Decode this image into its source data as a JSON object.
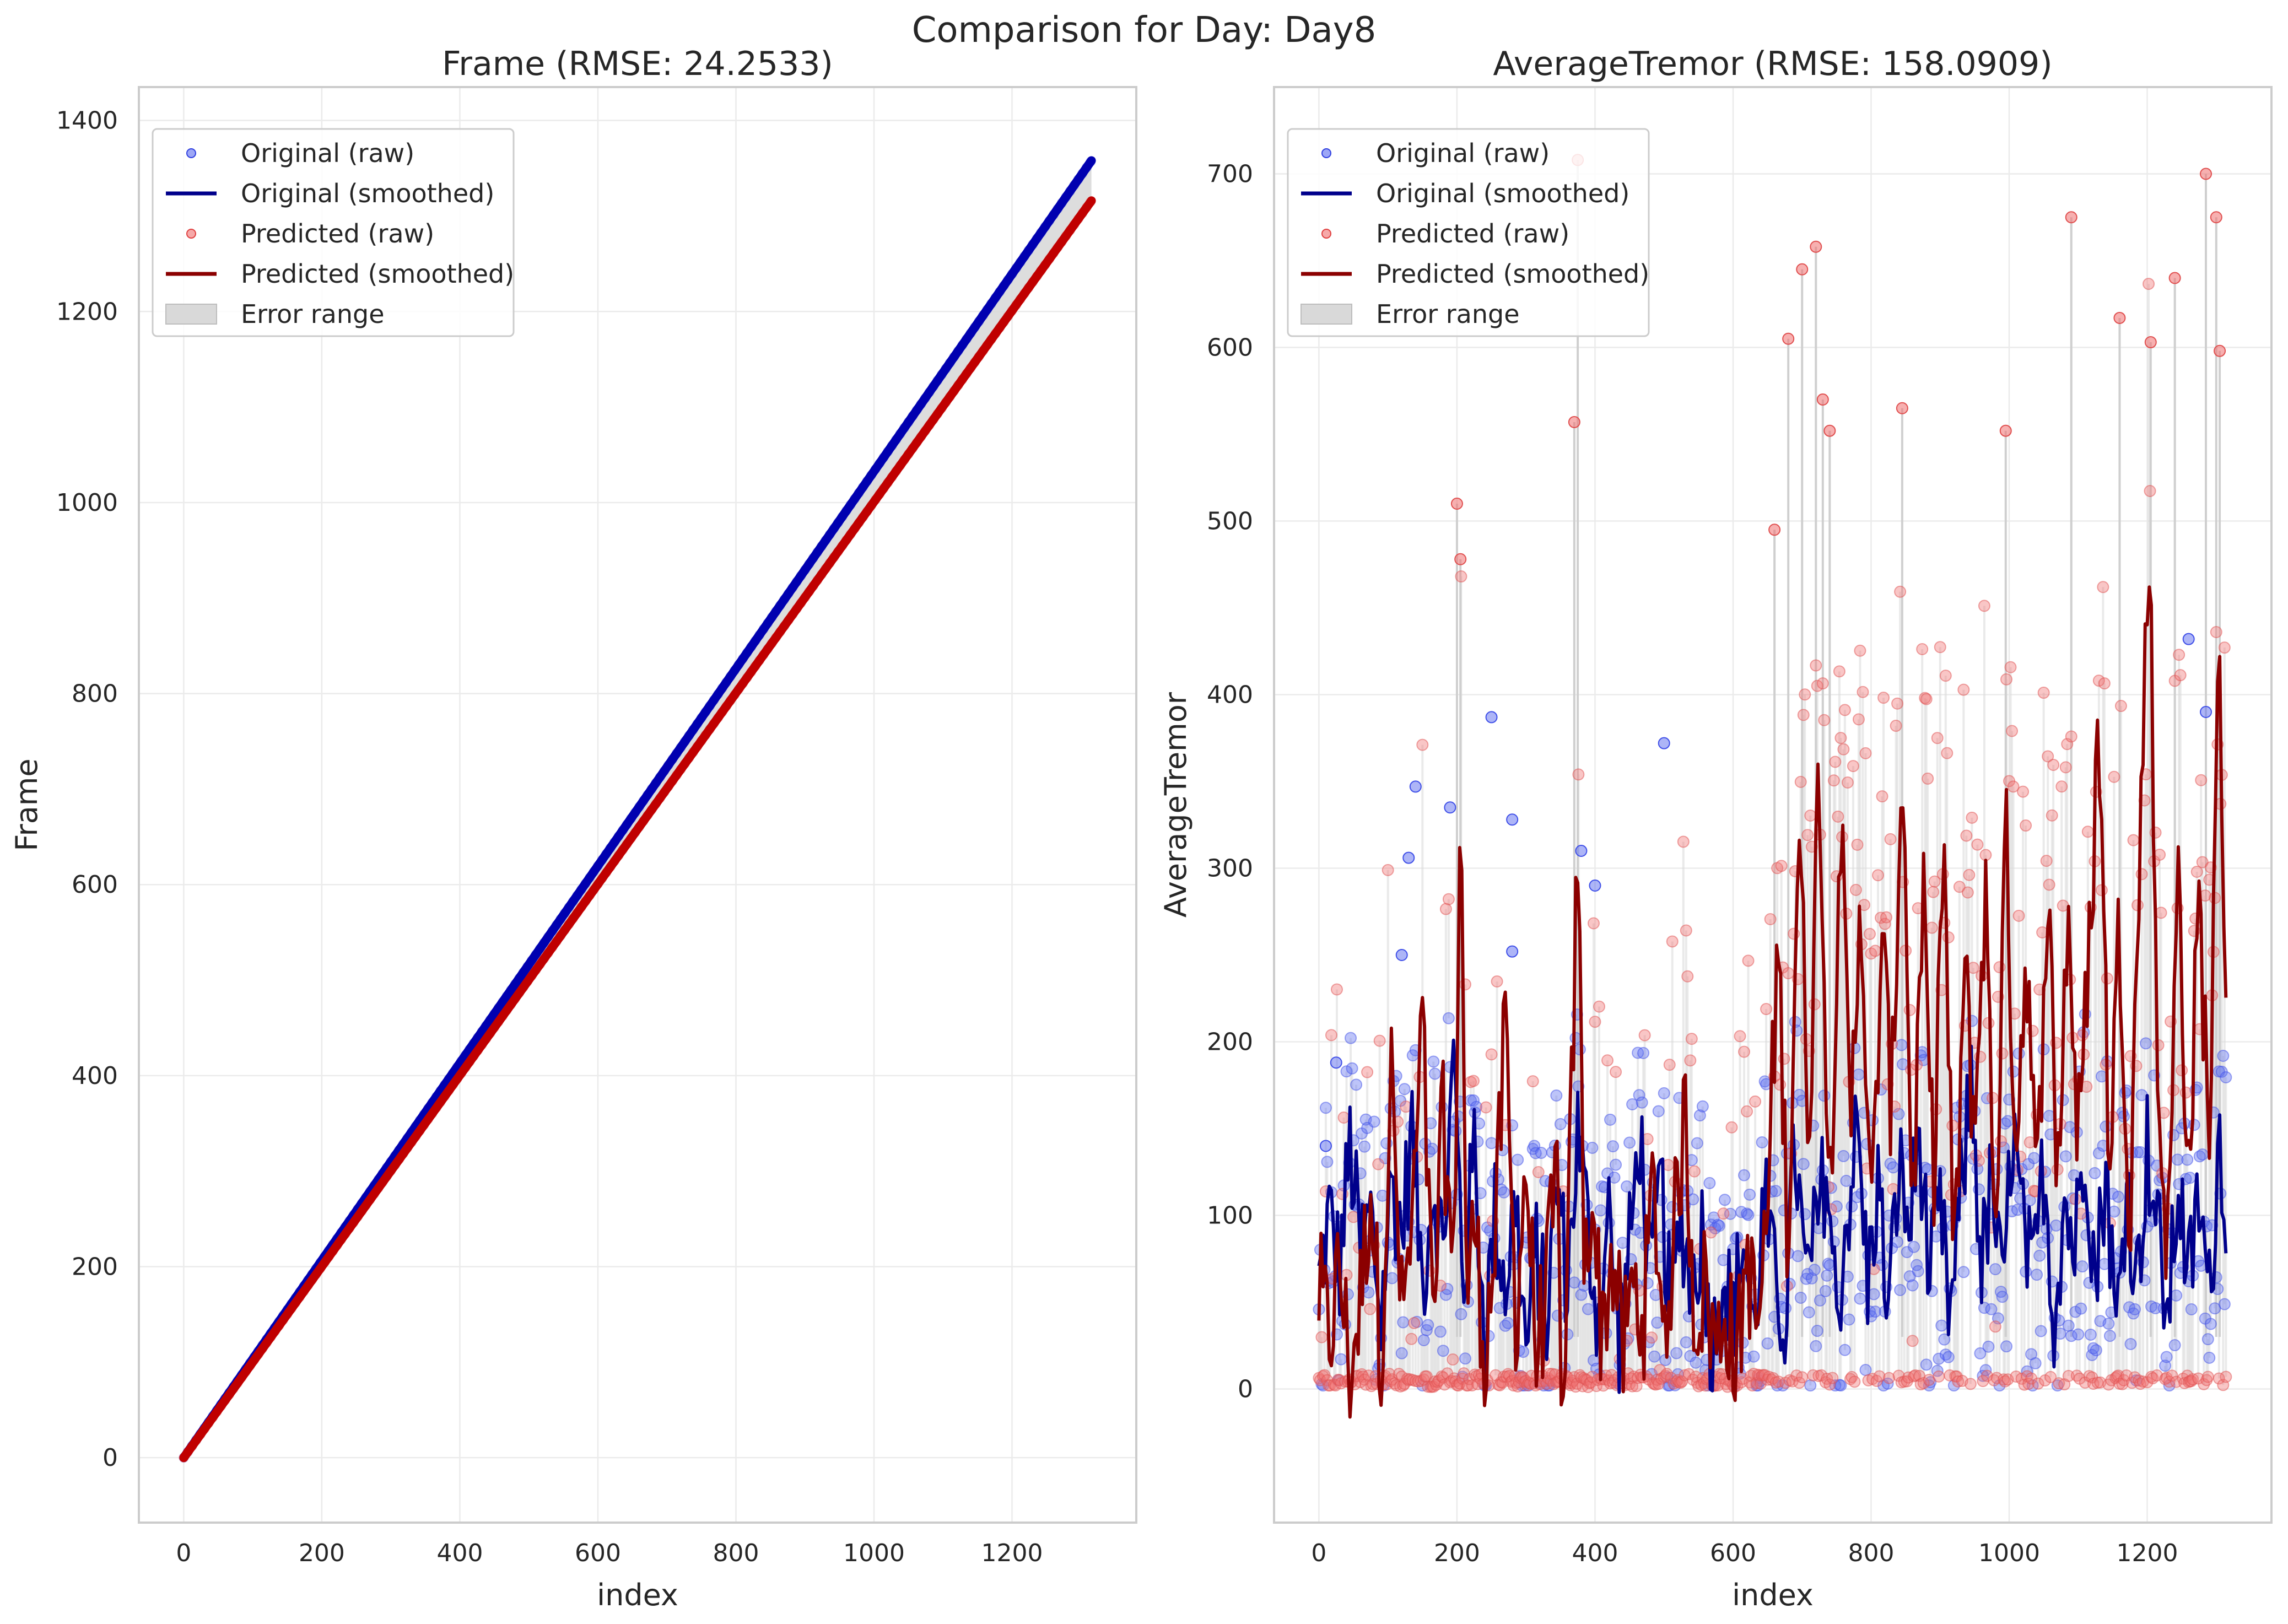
{
  "figure": {
    "title": "Comparison for Day: Day8"
  },
  "legend_labels": [
    "Original (raw)",
    "Original (smoothed)",
    "Predicted (raw)",
    "Predicted (smoothed)",
    "Error range"
  ],
  "colors": {
    "original_raw": "#5b6cf0",
    "original_smoothed": "#00008b",
    "predicted_raw": "#f07070",
    "predicted_smoothed": "#8b0000",
    "error_range": "#d9d9d9",
    "grid": "#ebebeb",
    "spine": "#cccccc"
  },
  "chart_data": [
    {
      "type": "line",
      "title": "Frame (RMSE: 24.2533)",
      "xlabel": "index",
      "ylabel": "Frame",
      "xlim": [
        -65,
        1380
      ],
      "ylim": [
        -68,
        1435
      ],
      "xticks": [
        0,
        200,
        400,
        600,
        800,
        1000,
        1200
      ],
      "yticks": [
        0,
        200,
        400,
        600,
        800,
        1000,
        1200,
        1400
      ],
      "n_points": 1316,
      "series": [
        {
          "name": "Original (raw)",
          "start": [
            0,
            0
          ],
          "end": [
            1315,
            1358
          ]
        },
        {
          "name": "Original (smoothed)",
          "start": [
            0,
            0
          ],
          "end": [
            1315,
            1358
          ]
        },
        {
          "name": "Predicted (raw)",
          "start": [
            0,
            0
          ],
          "end": [
            1315,
            1316
          ]
        },
        {
          "name": "Predicted (smoothed)",
          "start": [
            0,
            0
          ],
          "end": [
            1315,
            1316
          ]
        }
      ]
    },
    {
      "type": "scatter",
      "title": "AverageTremor (RMSE: 158.0909)",
      "xlabel": "index",
      "ylabel": "AverageTremor",
      "xlim": [
        -65,
        1380
      ],
      "ylim": [
        -77,
        750
      ],
      "xticks": [
        0,
        200,
        400,
        600,
        800,
        1000,
        1200
      ],
      "yticks": [
        0,
        100,
        200,
        300,
        400,
        500,
        600,
        700
      ],
      "n_points": 1316,
      "original_smoothed_keypoints": [
        [
          0,
          60
        ],
        [
          15,
          100
        ],
        [
          30,
          70
        ],
        [
          45,
          140
        ],
        [
          60,
          80
        ],
        [
          75,
          100
        ],
        [
          90,
          40
        ],
        [
          105,
          120
        ],
        [
          120,
          90
        ],
        [
          135,
          150
        ],
        [
          150,
          60
        ],
        [
          165,
          120
        ],
        [
          180,
          80
        ],
        [
          195,
          190
        ],
        [
          210,
          60
        ],
        [
          225,
          140
        ],
        [
          240,
          30
        ],
        [
          255,
          100
        ],
        [
          270,
          60
        ],
        [
          285,
          110
        ],
        [
          300,
          20
        ],
        [
          315,
          80
        ],
        [
          330,
          40
        ],
        [
          345,
          120
        ],
        [
          360,
          60
        ],
        [
          375,
          150
        ],
        [
          390,
          90
        ],
        [
          405,
          40
        ],
        [
          420,
          100
        ],
        [
          435,
          30
        ],
        [
          450,
          80
        ],
        [
          465,
          150
        ],
        [
          480,
          60
        ],
        [
          495,
          120
        ],
        [
          510,
          40
        ],
        [
          525,
          100
        ],
        [
          540,
          60
        ],
        [
          555,
          90
        ],
        [
          570,
          20
        ],
        [
          585,
          70
        ],
        [
          600,
          40
        ],
        [
          615,
          90
        ],
        [
          630,
          30
        ],
        [
          645,
          110
        ],
        [
          660,
          60
        ],
        [
          675,
          40
        ],
        [
          690,
          140
        ],
        [
          705,
          60
        ],
        [
          720,
          90
        ],
        [
          735,
          130
        ],
        [
          750,
          40
        ],
        [
          765,
          100
        ],
        [
          780,
          150
        ],
        [
          795,
          60
        ],
        [
          810,
          120
        ],
        [
          825,
          40
        ],
        [
          840,
          130
        ],
        [
          855,
          90
        ],
        [
          870,
          150
        ],
        [
          885,
          60
        ],
        [
          900,
          100
        ],
        [
          915,
          40
        ],
        [
          930,
          110
        ],
        [
          945,
          180
        ],
        [
          960,
          70
        ],
        [
          975,
          120
        ],
        [
          990,
          50
        ],
        [
          1005,
          150
        ],
        [
          1020,
          90
        ],
        [
          1035,
          60
        ],
        [
          1050,
          130
        ],
        [
          1065,
          40
        ],
        [
          1080,
          110
        ],
        [
          1095,
          80
        ],
        [
          1110,
          150
        ],
        [
          1125,
          60
        ],
        [
          1140,
          130
        ],
        [
          1155,
          30
        ],
        [
          1170,
          120
        ],
        [
          1185,
          60
        ],
        [
          1200,
          140
        ],
        [
          1215,
          90
        ],
        [
          1230,
          40
        ],
        [
          1245,
          120
        ],
        [
          1260,
          60
        ],
        [
          1275,
          110
        ],
        [
          1290,
          50
        ],
        [
          1305,
          150
        ],
        [
          1315,
          100
        ]
      ],
      "predicted_smoothed_keypoints": [
        [
          0,
          55
        ],
        [
          15,
          30
        ],
        [
          30,
          70
        ],
        [
          45,
          10
        ],
        [
          60,
          50
        ],
        [
          75,
          120
        ],
        [
          90,
          20
        ],
        [
          105,
          180
        ],
        [
          120,
          40
        ],
        [
          135,
          90
        ],
        [
          150,
          210
        ],
        [
          165,
          30
        ],
        [
          180,
          160
        ],
        [
          195,
          60
        ],
        [
          205,
          345
        ],
        [
          215,
          40
        ],
        [
          225,
          100
        ],
        [
          240,
          20
        ],
        [
          255,
          80
        ],
        [
          270,
          210
        ],
        [
          285,
          40
        ],
        [
          300,
          130
        ],
        [
          315,
          20
        ],
        [
          330,
          60
        ],
        [
          345,
          120
        ],
        [
          355,
          -40
        ],
        [
          365,
          150
        ],
        [
          375,
          310
        ],
        [
          385,
          60
        ],
        [
          395,
          120
        ],
        [
          410,
          30
        ],
        [
          425,
          80
        ],
        [
          440,
          20
        ],
        [
          455,
          60
        ],
        [
          470,
          40
        ],
        [
          485,
          120
        ],
        [
          500,
          30
        ],
        [
          515,
          90
        ],
        [
          530,
          160
        ],
        [
          545,
          40
        ],
        [
          560,
          60
        ],
        [
          575,
          20
        ],
        [
          590,
          50
        ],
        [
          605,
          10
        ],
        [
          620,
          80
        ],
        [
          635,
          30
        ],
        [
          650,
          100
        ],
        [
          665,
          260
        ],
        [
          680,
          80
        ],
        [
          695,
          330
        ],
        [
          710,
          150
        ],
        [
          725,
          370
        ],
        [
          740,
          100
        ],
        [
          755,
          340
        ],
        [
          770,
          140
        ],
        [
          785,
          300
        ],
        [
          800,
          80
        ],
        [
          815,
          260
        ],
        [
          830,
          160
        ],
        [
          845,
          375
        ],
        [
          860,
          100
        ],
        [
          875,
          280
        ],
        [
          890,
          120
        ],
        [
          905,
          320
        ],
        [
          920,
          60
        ],
        [
          935,
          240
        ],
        [
          950,
          150
        ],
        [
          965,
          290
        ],
        [
          980,
          90
        ],
        [
          995,
          320
        ],
        [
          1010,
          140
        ],
        [
          1025,
          260
        ],
        [
          1040,
          100
        ],
        [
          1055,
          300
        ],
        [
          1070,
          120
        ],
        [
          1085,
          280
        ],
        [
          1100,
          140
        ],
        [
          1115,
          240
        ],
        [
          1130,
          390
        ],
        [
          1145,
          130
        ],
        [
          1160,
          270
        ],
        [
          1175,
          100
        ],
        [
          1190,
          320
        ],
        [
          1203,
          500
        ],
        [
          1215,
          180
        ],
        [
          1230,
          80
        ],
        [
          1245,
          300
        ],
        [
          1260,
          120
        ],
        [
          1275,
          280
        ],
        [
          1290,
          150
        ],
        [
          1305,
          430
        ],
        [
          1315,
          200
        ]
      ],
      "predicted_raw_highlights": [
        [
          200,
          510
        ],
        [
          205,
          478
        ],
        [
          370,
          557
        ],
        [
          375,
          708
        ],
        [
          660,
          495
        ],
        [
          680,
          605
        ],
        [
          700,
          645
        ],
        [
          720,
          658
        ],
        [
          730,
          570
        ],
        [
          740,
          552
        ],
        [
          845,
          565
        ],
        [
          995,
          552
        ],
        [
          1090,
          675
        ],
        [
          1160,
          617
        ],
        [
          1205,
          603
        ],
        [
          1240,
          640
        ],
        [
          1285,
          700
        ],
        [
          1300,
          675
        ],
        [
          1305,
          598
        ]
      ],
      "original_raw_highlights": [
        [
          10,
          140
        ],
        [
          25,
          188
        ],
        [
          120,
          250
        ],
        [
          130,
          306
        ],
        [
          140,
          347
        ],
        [
          190,
          335
        ],
        [
          250,
          387
        ],
        [
          280,
          328
        ],
        [
          280,
          252
        ],
        [
          380,
          310
        ],
        [
          400,
          290
        ],
        [
          500,
          372
        ],
        [
          1260,
          432
        ],
        [
          1285,
          390
        ]
      ]
    }
  ]
}
